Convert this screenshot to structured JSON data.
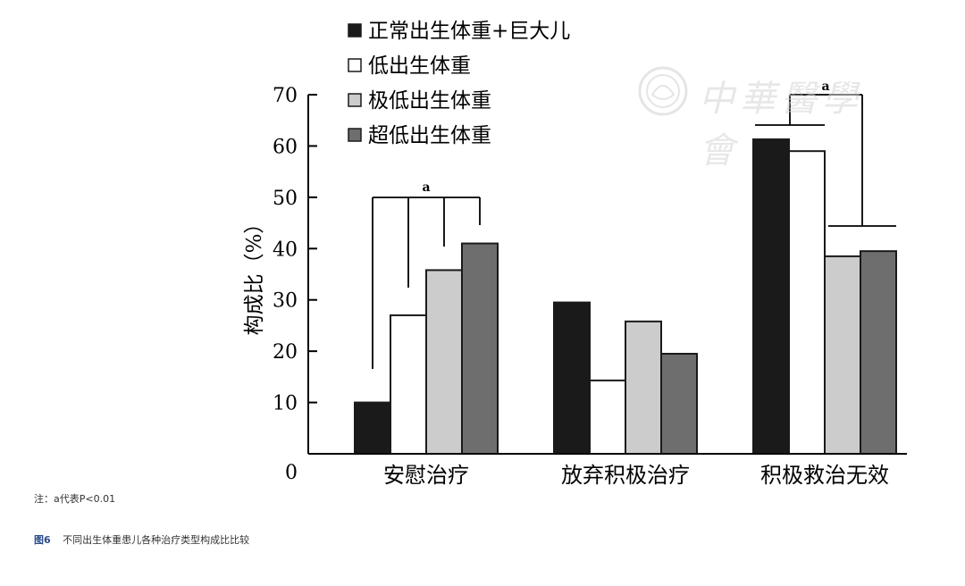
{
  "chart_data": {
    "type": "bar",
    "ylabel": "构成比（%）",
    "ylim": [
      0,
      70
    ],
    "yticks": [
      0,
      10,
      20,
      30,
      40,
      50,
      60,
      70
    ],
    "categories": [
      "安慰治疗",
      "放弃积极治疗",
      "积极救治无效"
    ],
    "series": [
      {
        "name": "正常出生体重+巨大儿",
        "color": "#1a1a1a",
        "values": [
          10,
          29.5,
          61.3
        ]
      },
      {
        "name": "低出生体重",
        "color": "#ffffff",
        "values": [
          27,
          14.3,
          59
        ]
      },
      {
        "name": "极低出生体重",
        "color": "#cccccc",
        "values": [
          35.8,
          25.8,
          38.5
        ]
      },
      {
        "name": "超低出生体重",
        "color": "#6e6e6e",
        "values": [
          41,
          19.5,
          39.5
        ]
      }
    ],
    "legend_position": "top-left",
    "annotations": [
      {
        "group": 0,
        "label": "a"
      },
      {
        "group": 2,
        "label": "a"
      }
    ]
  },
  "note": "注：a代表P<0.01",
  "caption": {
    "figure_number": "图6",
    "text": "不同出生体重患儿各种治疗类型构成比比较"
  },
  "watermark": {
    "text": "中華醫學會"
  }
}
